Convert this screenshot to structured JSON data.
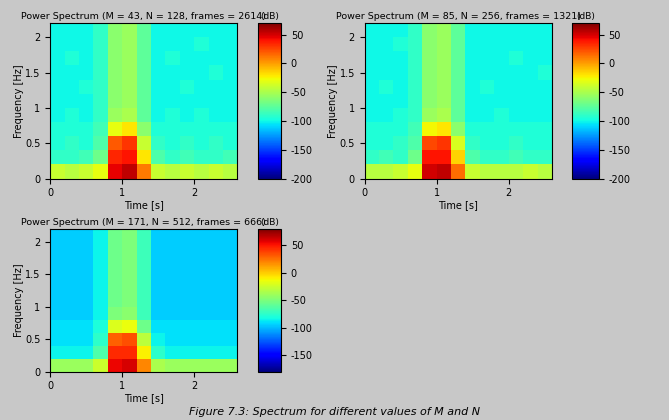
{
  "caption": "Figure 7.3: Spectrum for different values of M and N",
  "chart_data": [
    {
      "type": "heatmap",
      "title": "Power Spectrum (M = 43, N = 128, frames = 2614)",
      "x_label": "Time [s]",
      "y_label": "Frequency [Hz]",
      "xlim": [
        0,
        2.6
      ],
      "xticks": [
        0,
        1,
        2
      ],
      "ylim": [
        0,
        2.2
      ],
      "yticks": [
        0,
        0.5,
        1,
        1.5,
        2
      ],
      "x_edges": [
        0,
        0.2,
        0.4,
        0.6,
        0.8,
        1.0,
        1.2,
        1.4,
        1.6,
        1.8,
        2.0,
        2.2,
        2.4,
        2.6
      ],
      "y_edges": [
        0,
        0.2,
        0.4,
        0.6,
        0.8,
        1.0,
        1.2,
        1.4,
        1.6,
        1.8,
        2.0,
        2.2
      ],
      "cells": [
        [
          -40,
          -45,
          -40,
          -30,
          45,
          55,
          10,
          -40,
          -45,
          -40,
          -45,
          -40,
          -45
        ],
        [
          -90,
          -90,
          -85,
          -70,
          35,
          40,
          -20,
          -80,
          -90,
          -85,
          -90,
          -90,
          -85
        ],
        [
          -95,
          -90,
          -95,
          -80,
          20,
          30,
          -40,
          -90,
          -95,
          -90,
          -95,
          -90,
          -95
        ],
        [
          -95,
          -95,
          -95,
          -85,
          -30,
          -20,
          -60,
          -95,
          -95,
          -95,
          -95,
          -95,
          -95
        ],
        [
          -100,
          -95,
          -100,
          -90,
          -55,
          -50,
          -75,
          -100,
          -95,
          -100,
          -95,
          -100,
          -100
        ],
        [
          -100,
          -100,
          -100,
          -90,
          -60,
          -55,
          -75,
          -100,
          -100,
          -100,
          -100,
          -100,
          -100
        ],
        [
          -100,
          -100,
          -95,
          -90,
          -60,
          -55,
          -75,
          -100,
          -100,
          -95,
          -100,
          -100,
          -100
        ],
        [
          -100,
          -100,
          -100,
          -90,
          -60,
          -55,
          -75,
          -100,
          -100,
          -100,
          -100,
          -95,
          -100
        ],
        [
          -100,
          -95,
          -100,
          -90,
          -60,
          -55,
          -75,
          -100,
          -95,
          -100,
          -100,
          -100,
          -100
        ],
        [
          -100,
          -100,
          -100,
          -90,
          -60,
          -55,
          -75,
          -100,
          -100,
          -100,
          -95,
          -100,
          -100
        ],
        [
          -100,
          -100,
          -100,
          -90,
          -60,
          -55,
          -75,
          -100,
          -100,
          -100,
          -100,
          -100,
          -100
        ]
      ],
      "colorbar_range": [
        -200,
        70
      ],
      "colorbar_ticks": [
        -200,
        -150,
        -100,
        -50,
        0,
        50
      ],
      "colorbar_label": "(dB)"
    },
    {
      "type": "heatmap",
      "title": "Power Spectrum (M = 85, N = 256, frames = 1321)",
      "x_label": "Time [s]",
      "y_label": "Frequency [Hz]",
      "xlim": [
        0,
        2.6
      ],
      "xticks": [
        0,
        1,
        2
      ],
      "ylim": [
        0,
        2.2
      ],
      "yticks": [
        0,
        0.5,
        1,
        1.5,
        2
      ],
      "x_edges": [
        0,
        0.2,
        0.4,
        0.6,
        0.8,
        1.0,
        1.2,
        1.4,
        1.6,
        1.8,
        2.0,
        2.2,
        2.4,
        2.6
      ],
      "y_edges": [
        0,
        0.2,
        0.4,
        0.6,
        0.8,
        1.0,
        1.2,
        1.4,
        1.6,
        1.8,
        2.0,
        2.2
      ],
      "cells": [
        [
          -45,
          -45,
          -40,
          -30,
          50,
          55,
          15,
          -40,
          -45,
          -45,
          -45,
          -40,
          -45
        ],
        [
          -90,
          -85,
          -90,
          -70,
          40,
          40,
          -15,
          -80,
          -90,
          -90,
          -85,
          -90,
          -90
        ],
        [
          -95,
          -95,
          -90,
          -80,
          25,
          30,
          -35,
          -90,
          -95,
          -95,
          -90,
          -95,
          -95
        ],
        [
          -95,
          -95,
          -95,
          -85,
          -25,
          -20,
          -60,
          -95,
          -95,
          -95,
          -95,
          -95,
          -95
        ],
        [
          -100,
          -100,
          -95,
          -90,
          -55,
          -50,
          -75,
          -100,
          -100,
          -95,
          -100,
          -100,
          -100
        ],
        [
          -100,
          -100,
          -100,
          -90,
          -60,
          -55,
          -75,
          -100,
          -100,
          -100,
          -100,
          -100,
          -100
        ],
        [
          -100,
          -95,
          -100,
          -90,
          -60,
          -55,
          -75,
          -100,
          -95,
          -100,
          -100,
          -100,
          -100
        ],
        [
          -100,
          -100,
          -100,
          -90,
          -60,
          -55,
          -75,
          -100,
          -100,
          -100,
          -100,
          -100,
          -95
        ],
        [
          -100,
          -100,
          -100,
          -90,
          -60,
          -55,
          -75,
          -100,
          -100,
          -100,
          -95,
          -100,
          -100
        ],
        [
          -100,
          -100,
          -95,
          -90,
          -60,
          -55,
          -75,
          -100,
          -100,
          -100,
          -100,
          -100,
          -100
        ],
        [
          -100,
          -100,
          -100,
          -90,
          -60,
          -55,
          -75,
          -100,
          -100,
          -100,
          -100,
          -100,
          -100
        ]
      ],
      "colorbar_range": [
        -200,
        70
      ],
      "colorbar_ticks": [
        -200,
        -150,
        -100,
        -50,
        0,
        50
      ],
      "colorbar_label": "(dB)"
    },
    {
      "type": "heatmap",
      "title": "Power Spectrum (M = 171, N = 512, frames = 666)",
      "x_label": "Time [s]",
      "y_label": "Frequency [Hz]",
      "xlim": [
        0,
        2.6
      ],
      "xticks": [
        0,
        1,
        2
      ],
      "ylim": [
        0,
        2.2
      ],
      "yticks": [
        0,
        0.5,
        1,
        1.5,
        2
      ],
      "x_edges": [
        0,
        0.2,
        0.4,
        0.6,
        0.8,
        1.0,
        1.2,
        1.4,
        1.6,
        1.8,
        2.0,
        2.2,
        2.4,
        2.6
      ],
      "y_edges": [
        0,
        0.2,
        0.4,
        0.6,
        0.8,
        1.0,
        1.2,
        1.4,
        1.6,
        1.8,
        2.0,
        2.2
      ],
      "cells": [
        [
          -40,
          -40,
          -40,
          -25,
          55,
          60,
          20,
          -35,
          -40,
          -40,
          -40,
          -40,
          -40
        ],
        [
          -85,
          -85,
          -85,
          -65,
          45,
          45,
          -10,
          -75,
          -85,
          -85,
          -85,
          -85,
          -85
        ],
        [
          -90,
          -90,
          -90,
          -75,
          30,
          35,
          -30,
          -85,
          -90,
          -90,
          -90,
          -90,
          -90
        ],
        [
          -90,
          -90,
          -90,
          -80,
          -20,
          -15,
          -55,
          -90,
          -90,
          -90,
          -90,
          -90,
          -90
        ],
        [
          -95,
          -95,
          -95,
          -85,
          -50,
          -45,
          -70,
          -95,
          -95,
          -95,
          -95,
          -95,
          -95
        ],
        [
          -95,
          -95,
          -95,
          -85,
          -55,
          -50,
          -70,
          -95,
          -95,
          -95,
          -95,
          -95,
          -95
        ],
        [
          -95,
          -95,
          -95,
          -85,
          -55,
          -50,
          -70,
          -95,
          -95,
          -95,
          -95,
          -95,
          -95
        ],
        [
          -95,
          -95,
          -95,
          -85,
          -55,
          -50,
          -70,
          -95,
          -95,
          -95,
          -95,
          -95,
          -95
        ],
        [
          -95,
          -95,
          -95,
          -85,
          -55,
          -50,
          -70,
          -95,
          -95,
          -95,
          -95,
          -95,
          -95
        ],
        [
          -95,
          -95,
          -95,
          -85,
          -55,
          -50,
          -70,
          -95,
          -95,
          -95,
          -95,
          -95,
          -95
        ],
        [
          -95,
          -95,
          -95,
          -85,
          -55,
          -50,
          -70,
          -95,
          -95,
          -95,
          -95,
          -95,
          -95
        ]
      ],
      "colorbar_range": [
        -180,
        80
      ],
      "colorbar_ticks": [
        -150,
        -100,
        -50,
        0,
        50
      ],
      "colorbar_label": "(dB)"
    }
  ]
}
